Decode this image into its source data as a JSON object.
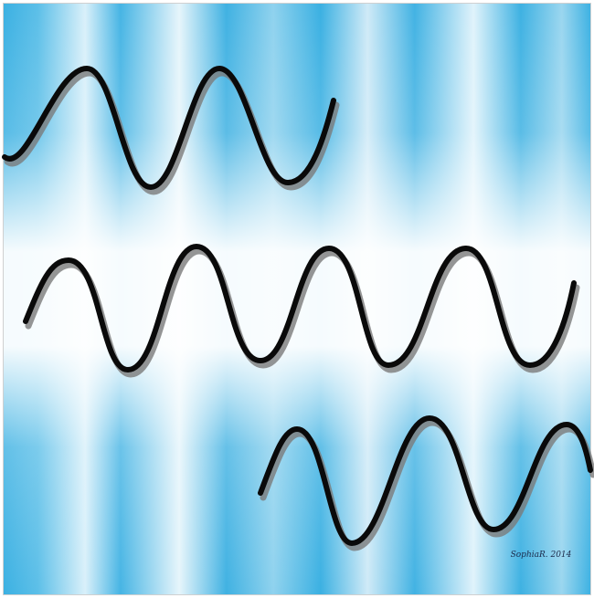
{
  "signature": "SophiaR. 2014"
}
